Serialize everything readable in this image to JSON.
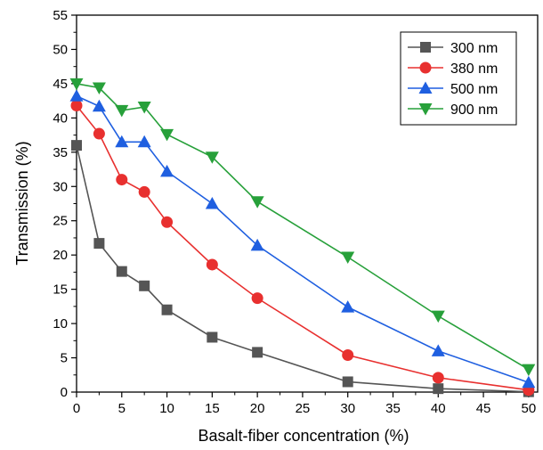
{
  "chart_data": {
    "type": "line",
    "title": "",
    "xlabel": "Basalt-fiber concentration (%)",
    "ylabel": "Transmission (%)",
    "xlim": [
      0,
      51
    ],
    "ylim": [
      0,
      55
    ],
    "xticks": [
      0,
      5,
      10,
      15,
      20,
      25,
      30,
      35,
      40,
      45,
      50
    ],
    "yticks": [
      0,
      5,
      10,
      15,
      20,
      25,
      30,
      35,
      40,
      45,
      50,
      55
    ],
    "grid": false,
    "legend_position": "top-right",
    "x": [
      0,
      2.5,
      5,
      7.5,
      10,
      15,
      20,
      30,
      40,
      50
    ],
    "series": [
      {
        "name": "300 nm",
        "color": "#555555",
        "marker": "square",
        "values": [
          36,
          21.7,
          17.6,
          15.5,
          12.0,
          8.0,
          5.8,
          1.5,
          0.5,
          0.05
        ]
      },
      {
        "name": "380 nm",
        "color": "#e8302f",
        "marker": "circle",
        "values": [
          41.8,
          37.7,
          31.0,
          29.2,
          24.8,
          18.6,
          13.7,
          5.4,
          2.1,
          0.3
        ]
      },
      {
        "name": "500 nm",
        "color": "#1f5fe0",
        "marker": "triangle-up",
        "values": [
          43.2,
          41.7,
          36.5,
          36.5,
          32.2,
          27.5,
          21.4,
          12.4,
          6.0,
          1.4
        ]
      },
      {
        "name": "900 nm",
        "color": "#27a03a",
        "marker": "triangle-down",
        "values": [
          45.0,
          44.4,
          41.1,
          41.6,
          37.6,
          34.3,
          27.8,
          19.7,
          11.1,
          3.3
        ]
      }
    ]
  }
}
